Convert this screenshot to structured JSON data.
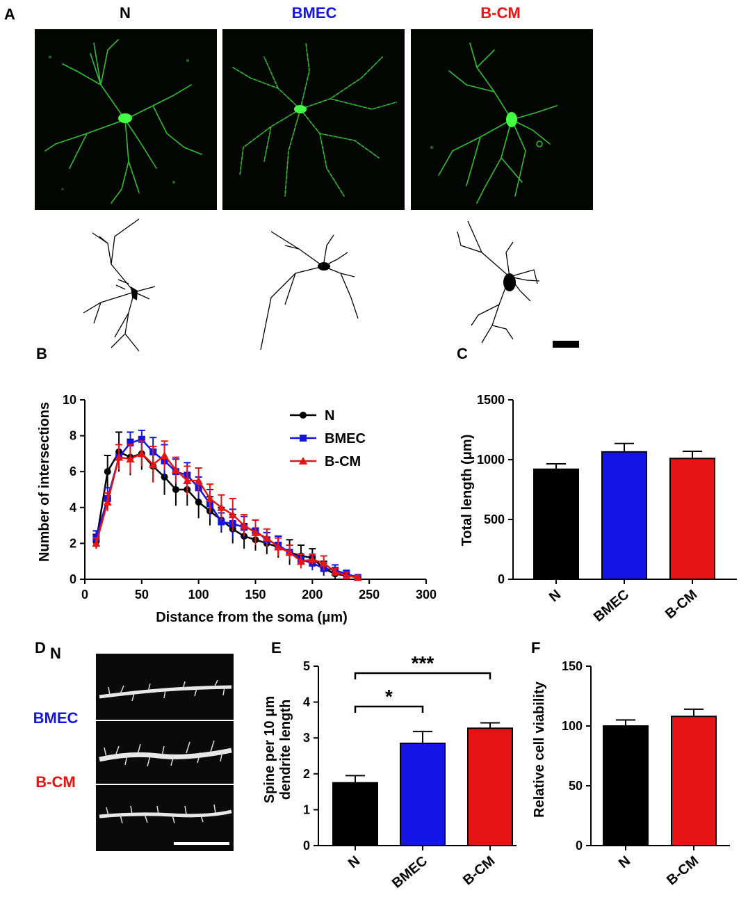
{
  "panels": {
    "A": "A",
    "B": "B",
    "C": "C",
    "D": "D",
    "E": "E",
    "F": "F"
  },
  "groups": {
    "n": {
      "label": "N",
      "color": "#000000"
    },
    "bmec": {
      "label": "BMEC",
      "color": "#1414e6"
    },
    "bcm": {
      "label": "B-CM",
      "color": "#e61414"
    }
  },
  "chart_data": [
    {
      "id": "B",
      "type": "line",
      "xlabel": "Distance from the soma (μm)",
      "ylabel": "Number of intersections",
      "xlim": [
        0,
        300
      ],
      "ylim": [
        0,
        10
      ],
      "xticks": [
        "0",
        "50",
        "100",
        "150",
        "200",
        "250",
        "300"
      ],
      "yticks": [
        "0",
        "2",
        "4",
        "6",
        "8",
        "10"
      ],
      "legend_position": "top-right",
      "x": [
        10,
        20,
        30,
        40,
        50,
        60,
        70,
        80,
        90,
        100,
        110,
        120,
        130,
        140,
        150,
        160,
        170,
        180,
        190,
        200,
        210,
        220,
        230,
        240
      ],
      "series": [
        {
          "name": "N",
          "color": "#000000",
          "marker": "circle",
          "values": [
            2.1,
            6.0,
            7.1,
            6.8,
            7.0,
            6.3,
            5.7,
            5.0,
            5.0,
            4.3,
            3.8,
            3.3,
            2.8,
            2.4,
            2.2,
            2.0,
            1.8,
            1.5,
            1.3,
            1.2,
            0.6,
            0.3,
            0.2,
            0.1
          ],
          "errors": [
            0.4,
            0.9,
            1.1,
            1.0,
            0.9,
            0.9,
            1.0,
            0.9,
            0.9,
            0.9,
            0.8,
            0.7,
            0.8,
            0.7,
            0.6,
            0.6,
            0.6,
            0.7,
            0.6,
            0.5,
            0.4,
            0.3,
            0.2,
            0.1
          ]
        },
        {
          "name": "BMEC",
          "color": "#1414e6",
          "marker": "square",
          "values": [
            2.3,
            4.5,
            6.8,
            7.6,
            7.8,
            7.1,
            6.6,
            6.0,
            5.8,
            5.1,
            4.2,
            3.2,
            3.1,
            2.9,
            2.7,
            2.2,
            1.9,
            1.5,
            1.1,
            0.9,
            0.6,
            0.5,
            0.3,
            0.1
          ],
          "errors": [
            0.4,
            0.6,
            0.7,
            0.6,
            0.5,
            0.8,
            0.9,
            0.7,
            0.7,
            0.6,
            0.8,
            0.5,
            0.8,
            0.6,
            0.6,
            0.4,
            0.5,
            0.4,
            0.3,
            0.4,
            0.3,
            0.3,
            0.2,
            0.1
          ]
        },
        {
          "name": "B-CM",
          "color": "#e61414",
          "marker": "triangle",
          "values": [
            2.0,
            4.3,
            6.8,
            6.7,
            7.0,
            6.4,
            6.9,
            6.1,
            5.5,
            5.5,
            4.5,
            4.0,
            3.6,
            3.0,
            2.6,
            2.3,
            1.8,
            1.5,
            1.0,
            1.1,
            0.9,
            0.4,
            0.2,
            0.1
          ],
          "errors": [
            0.3,
            0.5,
            0.7,
            0.8,
            0.7,
            1.0,
            0.8,
            0.7,
            0.8,
            0.7,
            0.8,
            0.7,
            0.9,
            0.6,
            0.7,
            0.5,
            0.5,
            0.4,
            0.4,
            0.3,
            0.4,
            0.2,
            0.2,
            0.1
          ]
        }
      ]
    },
    {
      "id": "C",
      "type": "bar",
      "ylabel": "Total length (μm)",
      "ylim": [
        0,
        1500
      ],
      "yticks": [
        "0",
        "500",
        "1000",
        "1500"
      ],
      "categories": [
        "N",
        "BMEC",
        "B-CM"
      ],
      "values": [
        920,
        1065,
        1010
      ],
      "errors": [
        45,
        70,
        60
      ],
      "colors": [
        "#000000",
        "#1414e6",
        "#e61414"
      ]
    },
    {
      "id": "E",
      "type": "bar",
      "ylabel": "Spine per 10 μm dendrite length",
      "ylim": [
        0,
        5
      ],
      "yticks": [
        "0",
        "1",
        "2",
        "3",
        "4",
        "5"
      ],
      "categories": [
        "N",
        "BMEC",
        "B-CM"
      ],
      "values": [
        1.75,
        2.85,
        3.27
      ],
      "errors": [
        0.2,
        0.33,
        0.15
      ],
      "colors": [
        "#000000",
        "#1414e6",
        "#e61414"
      ],
      "significance": [
        {
          "from": "N",
          "to": "BMEC",
          "label": "*"
        },
        {
          "from": "N",
          "to": "B-CM",
          "label": "***"
        }
      ]
    },
    {
      "id": "F",
      "type": "bar",
      "ylabel": "Relative cell viability",
      "ylim": [
        0,
        150
      ],
      "yticks": [
        "0",
        "50",
        "100",
        "150"
      ],
      "categories": [
        "N",
        "B-CM"
      ],
      "values": [
        100,
        108
      ],
      "errors": [
        5,
        6
      ],
      "colors": [
        "#000000",
        "#e61414"
      ]
    }
  ]
}
